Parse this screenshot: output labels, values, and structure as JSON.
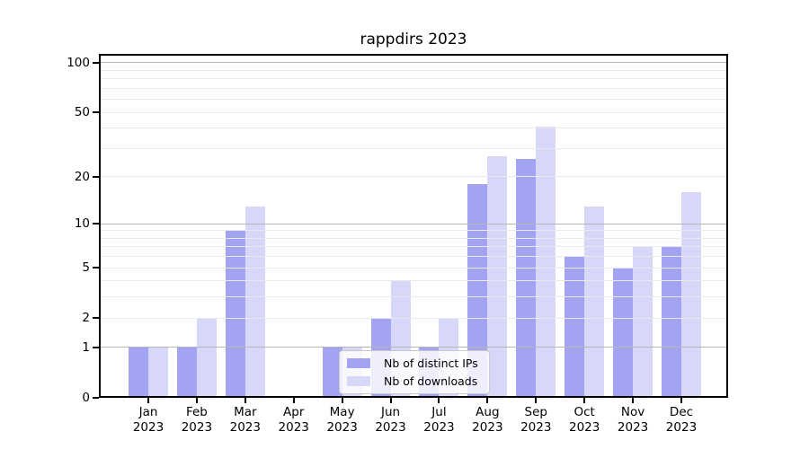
{
  "title": "rappdirs 2023",
  "legend": {
    "items": [
      {
        "label": "Nb of distinct IPs",
        "color": "#a3a3f3"
      },
      {
        "label": "Nb of downloads",
        "color": "#d7d7f8"
      }
    ]
  },
  "colors": {
    "distinct_ips_bar": "#a3a3f3",
    "downloads_bar": "#d7d7f8",
    "major_gridline": "#b5b5b5",
    "minor_gridline": "#eaeaea",
    "axis_frame": "#000000",
    "background": "#ffffff"
  },
  "chart_data": {
    "type": "bar",
    "title": "rappdirs 2023",
    "categories": [
      "Jan 2023",
      "Feb 2023",
      "Mar 2023",
      "Apr 2023",
      "May 2023",
      "Jun 2023",
      "Jul 2023",
      "Aug 2023",
      "Sep 2023",
      "Oct 2023",
      "Nov 2023",
      "Dec 2023"
    ],
    "series": [
      {
        "name": "Nb of distinct IPs",
        "color": "#a3a3f3",
        "values": [
          1,
          1,
          9,
          0,
          1,
          2,
          1,
          18,
          26,
          6,
          5,
          7
        ]
      },
      {
        "name": "Nb of downloads",
        "color": "#d7d7f8",
        "values": [
          1,
          2,
          13,
          0,
          1,
          4,
          2,
          27,
          41,
          13,
          7,
          16
        ]
      }
    ],
    "xlabel": "",
    "ylabel": "",
    "yscale": "log10(value+1)",
    "ylim": [
      0,
      112
    ],
    "yticks_labeled": [
      0,
      1,
      2,
      5,
      10,
      20,
      50,
      100
    ],
    "gridlines": {
      "major": [
        1,
        10,
        100
      ],
      "minor": [
        2,
        3,
        4,
        5,
        6,
        7,
        8,
        9,
        20,
        30,
        40,
        50,
        60,
        70,
        80,
        90
      ]
    },
    "grid": true,
    "legend_position": "bottom-center-inside"
  }
}
